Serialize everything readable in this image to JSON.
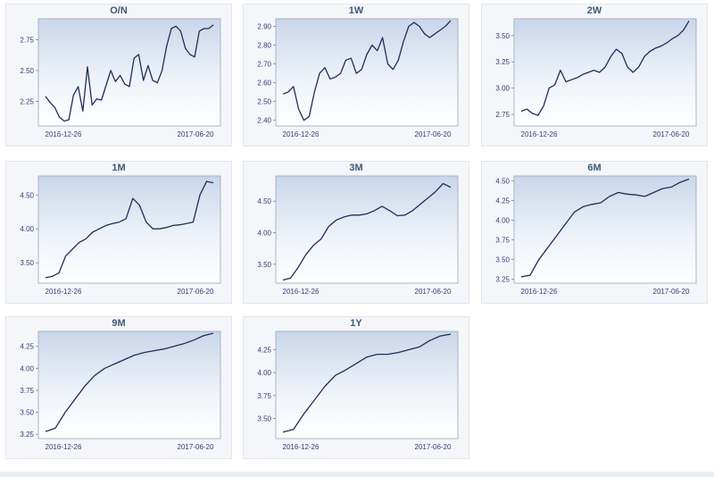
{
  "chart_data": [
    {
      "type": "line",
      "title": "O/N",
      "x_tick_labels": [
        "2016-12-26",
        "2017-06-20"
      ],
      "y_ticks": [
        2.25,
        2.5,
        2.75
      ],
      "y_tick_labels": [
        "2.25",
        "2.50",
        "2.75"
      ],
      "ylim": [
        2.05,
        2.92
      ],
      "grid": false,
      "color": "#1f2f5a",
      "values": [
        2.29,
        2.24,
        2.2,
        2.12,
        2.09,
        2.1,
        2.3,
        2.37,
        2.17,
        2.53,
        2.22,
        2.27,
        2.26,
        2.38,
        2.5,
        2.41,
        2.46,
        2.39,
        2.37,
        2.6,
        2.63,
        2.42,
        2.54,
        2.42,
        2.4,
        2.5,
        2.7,
        2.84,
        2.86,
        2.82,
        2.68,
        2.63,
        2.61,
        2.82,
        2.84,
        2.84,
        2.87
      ]
    },
    {
      "type": "line",
      "title": "1W",
      "x_tick_labels": [
        "2016-12-26",
        "2017-06-20"
      ],
      "y_ticks": [
        2.4,
        2.5,
        2.6,
        2.7,
        2.8,
        2.9
      ],
      "y_tick_labels": [
        "2.40",
        "2.50",
        "2.60",
        "2.70",
        "2.80",
        "2.90"
      ],
      "ylim": [
        2.37,
        2.94
      ],
      "grid": false,
      "color": "#1f2f5a",
      "values": [
        2.54,
        2.55,
        2.58,
        2.46,
        2.4,
        2.42,
        2.55,
        2.65,
        2.68,
        2.62,
        2.63,
        2.65,
        2.72,
        2.73,
        2.65,
        2.67,
        2.75,
        2.8,
        2.77,
        2.84,
        2.7,
        2.67,
        2.72,
        2.82,
        2.9,
        2.92,
        2.9,
        2.86,
        2.84,
        2.86,
        2.88,
        2.9,
        2.93
      ]
    },
    {
      "type": "line",
      "title": "2W",
      "x_tick_labels": [
        "2016-12-26",
        "2017-06-20"
      ],
      "y_ticks": [
        2.75,
        3.0,
        3.25,
        3.5
      ],
      "y_tick_labels": [
        "2.75",
        "3.00",
        "3.25",
        "3.50"
      ],
      "ylim": [
        2.64,
        3.66
      ],
      "grid": false,
      "color": "#1f2f5a",
      "values": [
        2.78,
        2.8,
        2.76,
        2.74,
        2.83,
        3.0,
        3.03,
        3.17,
        3.06,
        3.08,
        3.1,
        3.13,
        3.15,
        3.17,
        3.15,
        3.2,
        3.3,
        3.37,
        3.33,
        3.2,
        3.15,
        3.2,
        3.3,
        3.35,
        3.38,
        3.4,
        3.43,
        3.47,
        3.5,
        3.55,
        3.64
      ]
    },
    {
      "type": "line",
      "title": "1M",
      "x_tick_labels": [
        "2016-12-26",
        "2017-06-20"
      ],
      "y_ticks": [
        3.5,
        4.0,
        4.5
      ],
      "y_tick_labels": [
        "3.50",
        "4.00",
        "4.50"
      ],
      "ylim": [
        3.2,
        4.78
      ],
      "grid": false,
      "color": "#1f2f5a",
      "values": [
        3.28,
        3.3,
        3.35,
        3.6,
        3.7,
        3.8,
        3.85,
        3.95,
        4.0,
        4.05,
        4.08,
        4.1,
        4.15,
        4.45,
        4.35,
        4.1,
        4.0,
        4.0,
        4.02,
        4.05,
        4.06,
        4.08,
        4.1,
        4.5,
        4.7,
        4.68
      ]
    },
    {
      "type": "line",
      "title": "3M",
      "x_tick_labels": [
        "2016-12-26",
        "2017-06-20"
      ],
      "y_ticks": [
        3.5,
        4.0,
        4.5
      ],
      "y_tick_labels": [
        "3.50",
        "4.00",
        "4.50"
      ],
      "ylim": [
        3.2,
        4.9
      ],
      "grid": false,
      "color": "#1f2f5a",
      "values": [
        3.25,
        3.28,
        3.45,
        3.65,
        3.8,
        3.9,
        4.1,
        4.2,
        4.25,
        4.28,
        4.28,
        4.3,
        4.35,
        4.42,
        4.35,
        4.27,
        4.28,
        4.35,
        4.45,
        4.55,
        4.65,
        4.78,
        4.72
      ]
    },
    {
      "type": "line",
      "title": "6M",
      "x_tick_labels": [
        "2016-12-26",
        "2017-06-20"
      ],
      "y_ticks": [
        3.25,
        3.5,
        3.75,
        4.0,
        4.25,
        4.5
      ],
      "y_tick_labels": [
        "3.25",
        "3.50",
        "3.75",
        "4.00",
        "4.25",
        "4.50"
      ],
      "ylim": [
        3.2,
        4.56
      ],
      "grid": false,
      "color": "#1f2f5a",
      "values": [
        3.28,
        3.3,
        3.5,
        3.65,
        3.8,
        3.95,
        4.1,
        4.17,
        4.2,
        4.22,
        4.3,
        4.35,
        4.33,
        4.32,
        4.3,
        4.35,
        4.4,
        4.42,
        4.48,
        4.52
      ]
    },
    {
      "type": "line",
      "title": "9M",
      "x_tick_labels": [
        "2016-12-26",
        "2017-06-20"
      ],
      "y_ticks": [
        3.25,
        3.5,
        3.75,
        4.0,
        4.25
      ],
      "y_tick_labels": [
        "3.25",
        "3.50",
        "3.75",
        "4.00",
        "4.25"
      ],
      "ylim": [
        3.2,
        4.42
      ],
      "grid": false,
      "color": "#1f2f5a",
      "values": [
        3.28,
        3.32,
        3.5,
        3.65,
        3.8,
        3.92,
        4.0,
        4.05,
        4.1,
        4.15,
        4.18,
        4.2,
        4.22,
        4.25,
        4.28,
        4.32,
        4.37,
        4.4
      ]
    },
    {
      "type": "line",
      "title": "1Y",
      "x_tick_labels": [
        "2016-12-26",
        "2017-06-20"
      ],
      "y_ticks": [
        3.5,
        3.75,
        4.0,
        4.25
      ],
      "y_tick_labels": [
        "3.50",
        "3.75",
        "4.00",
        "4.25"
      ],
      "ylim": [
        3.28,
        4.45
      ],
      "grid": false,
      "color": "#1f2f5a",
      "values": [
        3.35,
        3.38,
        3.55,
        3.7,
        3.85,
        3.97,
        4.03,
        4.1,
        4.17,
        4.2,
        4.2,
        4.22,
        4.25,
        4.28,
        4.35,
        4.4,
        4.42
      ]
    }
  ]
}
